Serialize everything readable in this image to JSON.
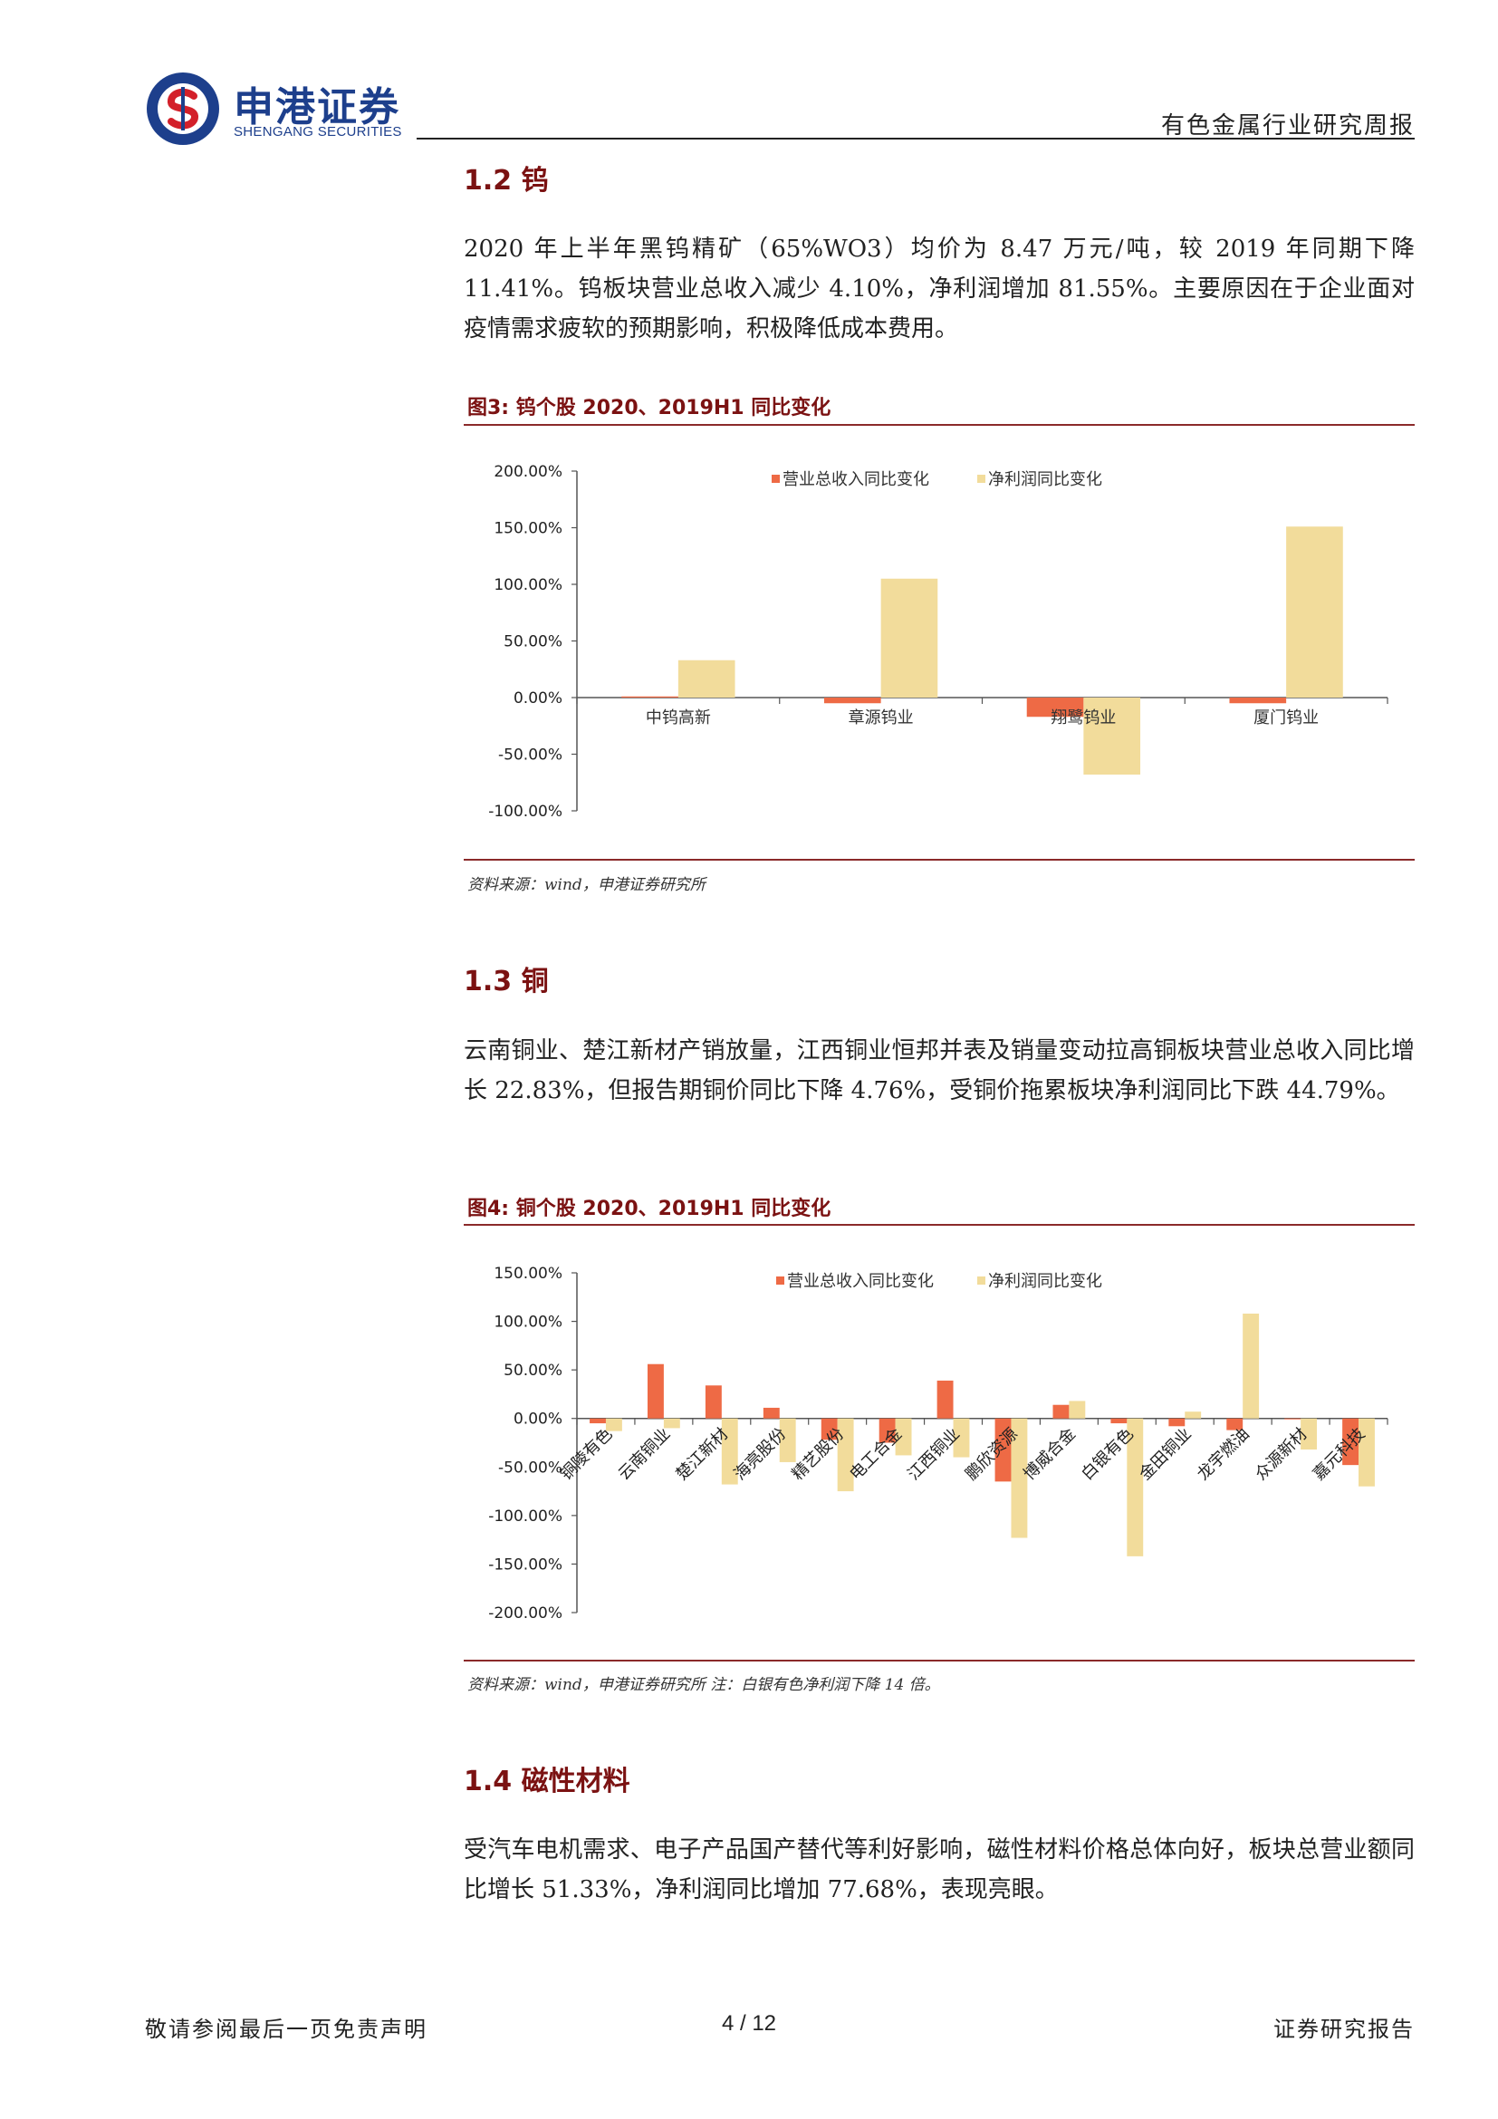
{
  "header": {
    "logo_cn": "申港证券",
    "logo_en": "SHENGANG SECURITIES",
    "report_title": "有色金属行业研究周报"
  },
  "sections": [
    {
      "title": "1.2 钨",
      "paragraph": "2020 年上半年黑钨精矿（65%WO3）均价为 8.47 万元/吨，较 2019 年同期下降 11.41%。钨板块营业总收入减少 4.10%，净利润增加 81.55%。主要原因在于企业面对疫情需求疲软的预期影响，积极降低成本费用。",
      "figure_title": "图3:  钨个股 2020、2019H1 同比变化",
      "source": "资料来源：wind，申港证券研究所"
    },
    {
      "title": "1.3 铜",
      "paragraph": "云南铜业、楚江新材产销放量，江西铜业恒邦并表及销量变动拉高铜板块营业总收入同比增长 22.83%，但报告期铜价同比下降 4.76%，受铜价拖累板块净利润同比下跌 44.79%。",
      "figure_title": "图4:  铜个股 2020、2019H1 同比变化",
      "source": "资料来源：wind，申港证券研究所  注：白银有色净利润下降 14 倍。"
    },
    {
      "title": "1.4 磁性材料",
      "paragraph": "受汽车电机需求、电子产品国产替代等利好影响，磁性材料价格总体向好，板块总营业额同比增长 51.33%，净利润同比增加 77.68%，表现亮眼。"
    }
  ],
  "chart_data": [
    {
      "type": "bar",
      "categories": [
        "中钨高新",
        "章源钨业",
        "翔鹭钨业",
        "厦门钨业"
      ],
      "series": [
        {
          "name": "营业总收入同比变化",
          "values": [
            1,
            -5,
            -17,
            -5
          ],
          "color": "#ee6a45"
        },
        {
          "name": "净利润同比变化",
          "values": [
            33,
            105,
            -68,
            151
          ],
          "color": "#f2dc9b"
        }
      ],
      "ylim": [
        -100,
        200
      ],
      "yticks": [
        "200.00%",
        "150.00%",
        "100.00%",
        "50.00%",
        "0.00%",
        "-50.00%",
        "-100.00%"
      ],
      "ytick_values": [
        200,
        150,
        100,
        50,
        0,
        -50,
        -100
      ],
      "legend": "top-center"
    },
    {
      "type": "bar",
      "categories": [
        "铜陵有色",
        "云南铜业",
        "楚江新材",
        "海亮股份",
        "精艺股份",
        "电工合金",
        "江西铜业",
        "鹏欣资源",
        "博威合金",
        "白银有色",
        "金田铜业",
        "龙宇燃油",
        "众源新材",
        "嘉元科技"
      ],
      "series": [
        {
          "name": "营业总收入同比变化",
          "values": [
            -5,
            56,
            34,
            11,
            -22,
            -25,
            39,
            -65,
            14,
            -5,
            -8,
            -12,
            0,
            -48
          ],
          "color": "#ee6a45"
        },
        {
          "name": "净利润同比变化",
          "values": [
            -13,
            -10,
            -68,
            -45,
            -75,
            -38,
            -40,
            -123,
            18,
            -142,
            7,
            108,
            -32,
            -70
          ],
          "color": "#f2dc9b"
        }
      ],
      "ylim": [
        -200,
        150
      ],
      "yticks": [
        "150.00%",
        "100.00%",
        "50.00%",
        "0.00%",
        "-50.00%",
        "-100.00%",
        "-150.00%",
        "-200.00%"
      ],
      "ytick_values": [
        150,
        100,
        50,
        0,
        -50,
        -100,
        -150,
        -200
      ],
      "legend": "top-center"
    }
  ],
  "footer": {
    "left": "敬请参阅最后一页免责声明",
    "page": "4 / 12",
    "right": "证券研究报告"
  }
}
